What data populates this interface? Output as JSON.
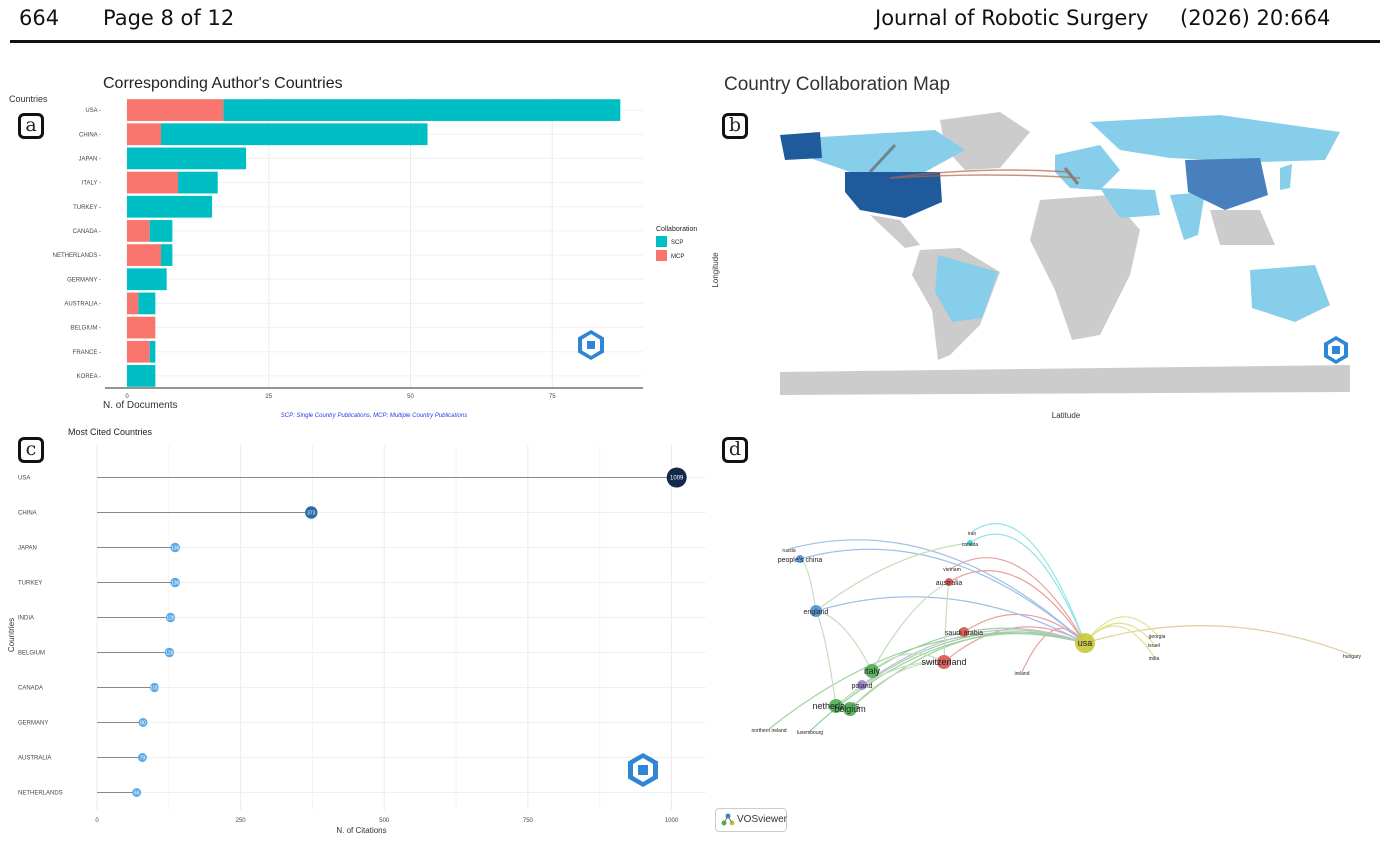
{
  "header": {
    "page_number": "664",
    "page_label": "Page 8 of 12",
    "journal": "Journal of Robotic Surgery",
    "citation": "(2026) 20:664"
  },
  "panel_labels": {
    "a": "a",
    "b": "b",
    "c": "c",
    "d": "d"
  },
  "chart_data": [
    {
      "type": "bar",
      "title": "Corresponding Author's Countries",
      "xlabel": "N. of Documents",
      "ylabel": "Countries",
      "categories": [
        "USA",
        "CHINA",
        "JAPAN",
        "ITALY",
        "TURKEY",
        "CANADA",
        "NETHERLANDS",
        "GERMANY",
        "AUSTRALIA",
        "BELGIUM",
        "FRANCE",
        "KOREA"
      ],
      "series": [
        {
          "name": "SCP",
          "color": "#00bfc4",
          "values": [
            70,
            47,
            21,
            7,
            15,
            4,
            2,
            7,
            3,
            0,
            1,
            5
          ]
        },
        {
          "name": "MCP",
          "color": "#f8766d",
          "values": [
            17,
            6,
            0,
            9,
            0,
            4,
            6,
            0,
            2,
            5,
            4,
            0
          ]
        }
      ],
      "stacked": true,
      "xticks": [
        0,
        25,
        50,
        75
      ],
      "xlim": [
        0,
        91
      ],
      "legend": {
        "title": "Collaboration",
        "position": "right"
      },
      "caption": "SCP: Single Country Publications, MCP: Multiple Country Publications"
    },
    {
      "type": "lollipop",
      "title": "Most Cited Countries",
      "xlabel": "N. of Citations",
      "ylabel": "Countries",
      "categories": [
        "USA",
        "CHINA",
        "JAPAN",
        "TURKEY",
        "INDIA",
        "BELGIUM",
        "CANADA",
        "GERMANY",
        "AUSTRALIA",
        "NETHERLANDS"
      ],
      "values": [
        1009,
        373,
        136,
        136,
        128,
        126,
        100,
        80,
        79,
        69
      ],
      "value_labels": [
        "1009",
        "373",
        "136",
        "136",
        "128",
        "126",
        "100",
        "80",
        "79",
        "69"
      ],
      "xticks": [
        0,
        250,
        500,
        750,
        1000
      ],
      "xlim": [
        0,
        1060
      ]
    }
  ],
  "map": {
    "title": "Country Collaboration Map",
    "xlabel": "Latitude",
    "ylabel": "Longitude"
  },
  "network": {
    "brand": "VOSviewer",
    "nodes": [
      {
        "label": "usa",
        "color": "#c9c93a"
      },
      {
        "label": "hungary",
        "color": "#c9a64a"
      },
      {
        "label": "georgia",
        "color": "#c9c93a"
      },
      {
        "label": "israel",
        "color": "#c9c93a"
      },
      {
        "label": "india",
        "color": "#c9c93a"
      },
      {
        "label": "switzerland",
        "color": "#d9534f"
      },
      {
        "label": "saudi arabia",
        "color": "#d9534f"
      },
      {
        "label": "australia",
        "color": "#d9534f"
      },
      {
        "label": "vietnam",
        "color": "#d9534f"
      },
      {
        "label": "ireland",
        "color": "#d9534f"
      },
      {
        "label": "italy",
        "color": "#4caf50"
      },
      {
        "label": "netherlands",
        "color": "#4caf50"
      },
      {
        "label": "belgium",
        "color": "#4caf50"
      },
      {
        "label": "luxembourg",
        "color": "#4caf50"
      },
      {
        "label": "northern ireland",
        "color": "#4caf50"
      },
      {
        "label": "poland",
        "color": "#a67dd9"
      },
      {
        "label": "england",
        "color": "#4f8fd1"
      },
      {
        "label": "people's china",
        "color": "#4f8fd1"
      },
      {
        "label": "russia",
        "color": "#4f8fd1"
      },
      {
        "label": "canada",
        "color": "#3ccfd0"
      },
      {
        "label": "iran",
        "color": "#3ccfd0"
      }
    ]
  }
}
